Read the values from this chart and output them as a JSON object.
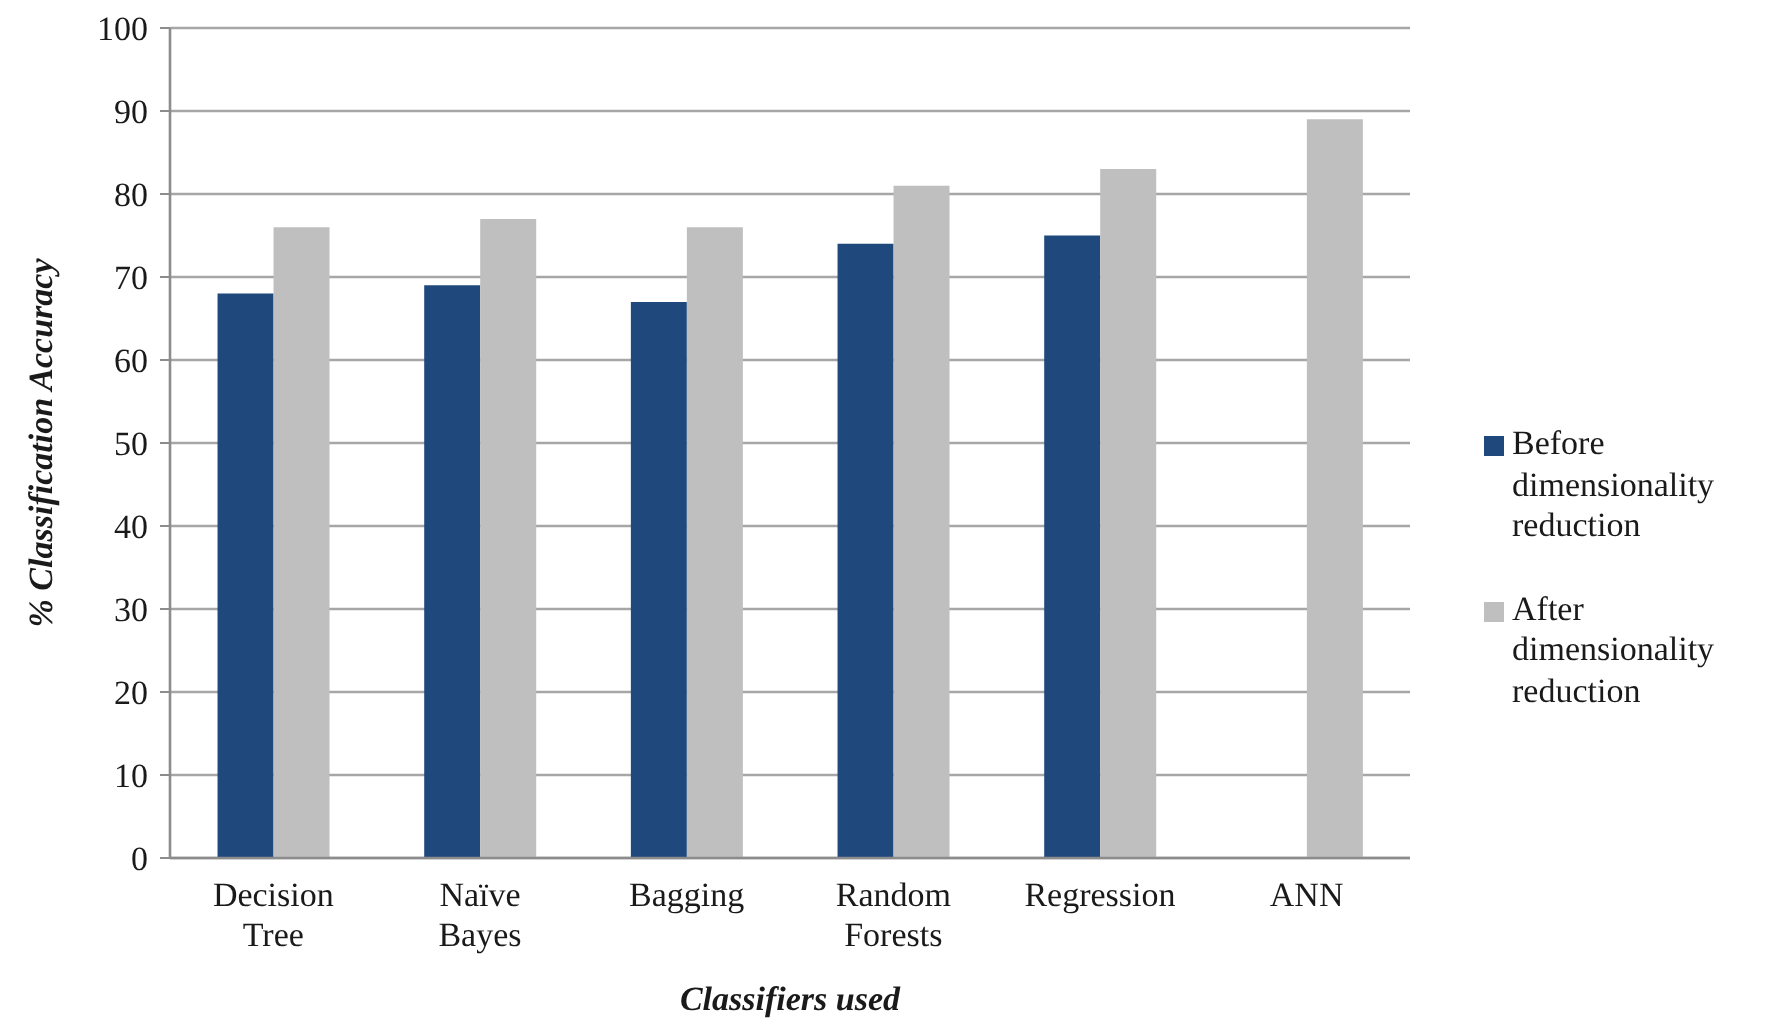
{
  "chart_data": {
    "type": "bar",
    "xlabel": "Classifiers used",
    "ylabel": "% Classification Accuracy",
    "categories": [
      "Decision Tree",
      "Naïve Bayes",
      "Bagging",
      "Random Forests",
      "Regression",
      "ANN"
    ],
    "series": [
      {
        "name": "Before dimensionality reduction",
        "color": "#1f497d",
        "values": [
          68,
          69,
          67,
          74,
          75,
          null
        ]
      },
      {
        "name": "After dimensionality reduction",
        "color": "#bfbfbf",
        "values": [
          76,
          77,
          76,
          81,
          83,
          89
        ]
      }
    ],
    "ylim": [
      0,
      100
    ],
    "yticks": [
      0,
      10,
      20,
      30,
      40,
      50,
      60,
      70,
      80,
      90,
      100
    ],
    "grid": "y",
    "legend": "right"
  }
}
